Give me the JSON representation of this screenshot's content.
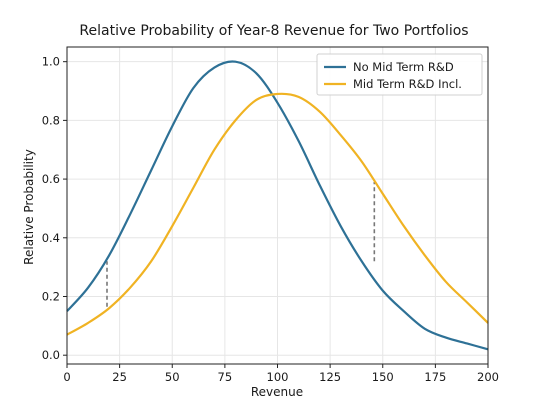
{
  "chart_data": {
    "type": "line",
    "title": "Relative Probability of Year-8 Revenue for Two Portfolios",
    "xlabel": "Revenue",
    "ylabel": "Relative Probability",
    "xlim": [
      0,
      200
    ],
    "ylim": [
      -0.03,
      1.05
    ],
    "xticks": [
      0,
      25,
      50,
      75,
      100,
      125,
      150,
      175,
      200
    ],
    "yticks": [
      0.0,
      0.2,
      0.4,
      0.6,
      0.8,
      1.0
    ],
    "xtick_labels": [
      "0",
      "25",
      "50",
      "75",
      "100",
      "125",
      "150",
      "175",
      "200"
    ],
    "ytick_labels": [
      "0.0",
      "0.2",
      "0.4",
      "0.6",
      "0.8",
      "1.0"
    ],
    "grid": true,
    "legend_position": "top-right",
    "x": [
      0,
      10,
      20,
      30,
      40,
      50,
      60,
      70,
      80,
      90,
      100,
      110,
      120,
      130,
      140,
      150,
      160,
      170,
      180,
      190,
      200
    ],
    "series": [
      {
        "name": "No Mid Term R&D",
        "color": "#2e7196",
        "values": [
          0.15,
          0.23,
          0.34,
          0.48,
          0.63,
          0.78,
          0.91,
          0.98,
          1.0,
          0.96,
          0.86,
          0.73,
          0.58,
          0.44,
          0.32,
          0.22,
          0.15,
          0.09,
          0.06,
          0.04,
          0.02
        ]
      },
      {
        "name": "Mid Term R&D Incl.",
        "color": "#f0b323",
        "values": [
          0.07,
          0.11,
          0.16,
          0.23,
          0.32,
          0.44,
          0.57,
          0.7,
          0.8,
          0.87,
          0.89,
          0.88,
          0.83,
          0.75,
          0.66,
          0.55,
          0.44,
          0.34,
          0.25,
          0.18,
          0.11
        ]
      }
    ],
    "annotations": [
      {
        "type": "dashed-vline",
        "x": 19,
        "y1": 0.165,
        "y2": 0.32,
        "color": "#777777"
      },
      {
        "type": "dashed-vline",
        "x": 146,
        "y1": 0.32,
        "y2": 0.59,
        "color": "#777777"
      }
    ]
  }
}
